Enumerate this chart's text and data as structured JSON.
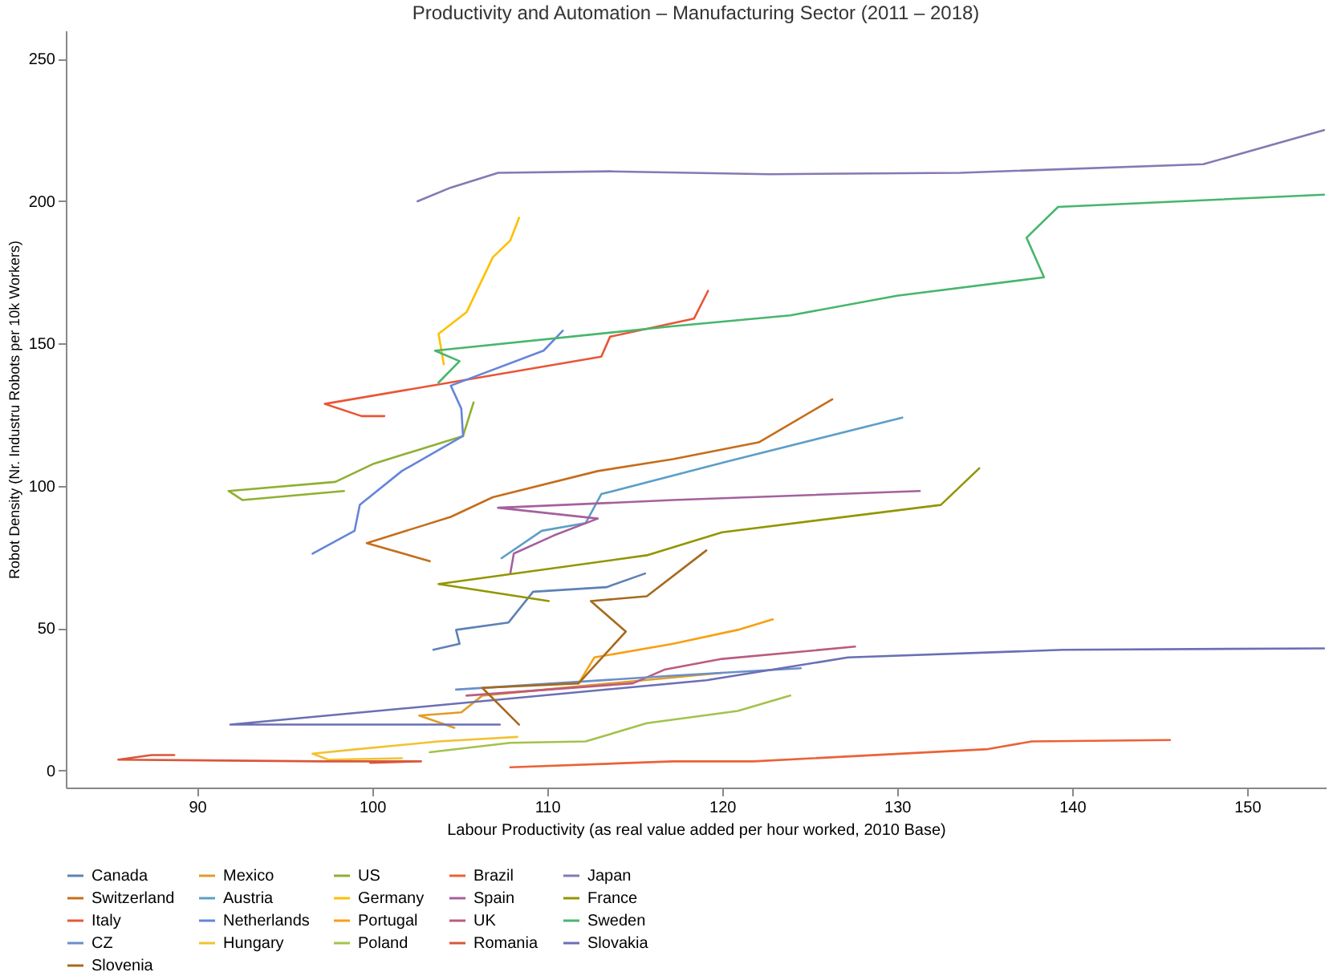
{
  "chart_data": {
    "type": "line",
    "title": "Productivity and Automation – Manufacturing Sector (2011 – 2018)",
    "xlabel": "Labour Productivity (as real value added per hour worked, 2010 Base)",
    "ylabel": "Robot Density (Nr. Industru Robots per 10k Workers)",
    "xlim": [
      82.5,
      154.5
    ],
    "xticks": [
      90,
      100,
      110,
      120,
      130,
      140,
      150
    ],
    "ylim": [
      -6,
      260
    ],
    "yticks": [
      0,
      50,
      100,
      150,
      200,
      250
    ],
    "grid": false,
    "legend": "bottom",
    "series": [
      {
        "name": "Canada",
        "color": "#5e81b5",
        "x": [
          103.5,
          105,
          104.8,
          107.8,
          109.2,
          113.4,
          115.6
        ],
        "values": [
          42.4,
          44.5,
          49.4,
          52,
          62.8,
          64.4,
          69.2
        ]
      },
      {
        "name": "Mexico",
        "color": "#e19c24",
        "x": [
          104.7,
          102.7,
          105.1,
          106.3,
          113.6,
          120
        ],
        "values": [
          15,
          19.3,
          20.4,
          26.3,
          30.6,
          34.3
        ]
      },
      {
        "name": "US",
        "color": "#8fb032",
        "x": [
          105.8,
          105.2,
          100.1,
          97.9,
          91.8,
          92.6,
          98.4
        ],
        "values": [
          129.3,
          117.5,
          107.8,
          101.4,
          98.2,
          95,
          98.2
        ]
      },
      {
        "name": "Brazil",
        "color": "#eb6235",
        "x": [
          107.9,
          117.2,
          121.8,
          135.2,
          137.7,
          145.6
        ],
        "values": [
          1.1,
          3.2,
          3.2,
          7.5,
          10.2,
          10.7
        ]
      },
      {
        "name": "Japan",
        "color": "#8778b3",
        "x": [
          102.6,
          104.5,
          107.2,
          113.6,
          122.7,
          133.6,
          147.5,
          154.4
        ],
        "values": [
          200,
          204.8,
          210,
          210.5,
          209.5,
          210,
          213,
          225
        ]
      },
      {
        "name": "Switzerland",
        "color": "#c56e1a",
        "x": [
          103.3,
          99.7,
          104.5,
          106.9,
          112.9,
          117.2,
          122.1,
          126.3
        ],
        "values": [
          73.5,
          79.9,
          89.1,
          96,
          105.2,
          109.4,
          115.3,
          130.4
        ]
      },
      {
        "name": "Austria",
        "color": "#5d9ec7",
        "x": [
          107.4,
          109.7,
          112.2,
          113.1,
          120.2,
          130.3
        ],
        "values": [
          74.6,
          84.2,
          86.9,
          97.1,
          108.4,
          124
        ]
      },
      {
        "name": "Germany",
        "color": "#ffbf00",
        "x": [
          104.1,
          103.8,
          105.4,
          106.9,
          107.9,
          108.4
        ],
        "values": [
          142.7,
          153.4,
          161,
          180.3,
          186.2,
          194.2
        ]
      },
      {
        "name": "Spain",
        "color": "#a5609d",
        "x": [
          107.9,
          108.1,
          110.4,
          112.9,
          107.2,
          117.2,
          131.3
        ],
        "values": [
          69.2,
          76.2,
          82.6,
          88.5,
          92.3,
          95,
          98.2
        ]
      },
      {
        "name": "France",
        "color": "#929600",
        "x": [
          110.1,
          103.8,
          115.7,
          120,
          132.5,
          134.7
        ],
        "values": [
          59.5,
          65.5,
          75.6,
          83.7,
          93.3,
          106.2
        ]
      },
      {
        "name": "Italy",
        "color": "#e95536",
        "x": [
          100.7,
          99.4,
          97.3,
          113.1,
          113.6,
          118.4,
          119.2
        ],
        "values": [
          124.5,
          124.5,
          128.8,
          145.4,
          152.4,
          158.8,
          168.5
        ]
      },
      {
        "name": "Netherlands",
        "color": "#6685d9",
        "x": [
          96.6,
          99,
          99.3,
          101.7,
          105.2,
          105.1,
          104.5,
          109.8,
          110.9
        ],
        "values": [
          76.2,
          84.2,
          93.3,
          105.2,
          117.5,
          127.1,
          135.2,
          147.5,
          154.5
        ]
      },
      {
        "name": "Portugal",
        "color": "#f89f13",
        "x": [
          111.8,
          112.7,
          117.2,
          120.9,
          122.9
        ],
        "values": [
          30.6,
          39.7,
          44.5,
          49.4,
          53.1
        ]
      },
      {
        "name": "UK",
        "color": "#bc5b80",
        "x": [
          105.4,
          114.9,
          116.7,
          120,
          127.6
        ],
        "values": [
          26.3,
          30.6,
          35.4,
          39.2,
          43.5
        ]
      },
      {
        "name": "Sweden",
        "color": "#47b66d",
        "x": [
          103.8,
          105,
          103.6,
          117.2,
          123.9,
          130,
          138.4,
          137.4,
          139.2,
          154.4
        ],
        "values": [
          136.3,
          143.8,
          147.5,
          156.1,
          159.9,
          166.8,
          173.3,
          187.2,
          198,
          202.3
        ]
      },
      {
        "name": "CZ",
        "color": "#6a8fc8",
        "x": [
          104.8,
          117.2,
          124.5
        ],
        "values": [
          28.4,
          33.3,
          35.9
        ]
      },
      {
        "name": "Hungary",
        "color": "#f2c230",
        "x": [
          101.7,
          97.5,
          96.6,
          99.2,
          103.8,
          108.3
        ],
        "values": [
          4.3,
          3.8,
          5.9,
          7.5,
          10.2,
          11.8
        ]
      },
      {
        "name": "Poland",
        "color": "#a3c24b",
        "x": [
          103.3,
          107.9,
          112.2,
          115.7,
          120.9,
          123.9
        ],
        "values": [
          6.4,
          9.7,
          10.2,
          16.6,
          20.9,
          26.3
        ]
      },
      {
        "name": "Romania",
        "color": "#d9573a",
        "x": [
          88.7,
          87.4,
          85.5,
          97.2,
          102.8,
          99.9
        ],
        "values": [
          5.4,
          5.4,
          3.8,
          3.2,
          3.2,
          2.7
        ]
      },
      {
        "name": "Slovakia",
        "color": "#6a6fb5",
        "x": [
          107.3,
          91.9,
          119.1,
          127.2,
          139.5,
          154.4
        ],
        "values": [
          16.1,
          16.1,
          31.7,
          39.7,
          42.4,
          42.9
        ]
      },
      {
        "name": "Slovenia",
        "color": "#a66a1c",
        "x": [
          108.4,
          106.3,
          111.8,
          114.5,
          112.5,
          115.7,
          119.1
        ],
        "values": [
          16.1,
          29,
          30.6,
          48.8,
          59.5,
          61.2,
          77.3
        ]
      }
    ]
  }
}
